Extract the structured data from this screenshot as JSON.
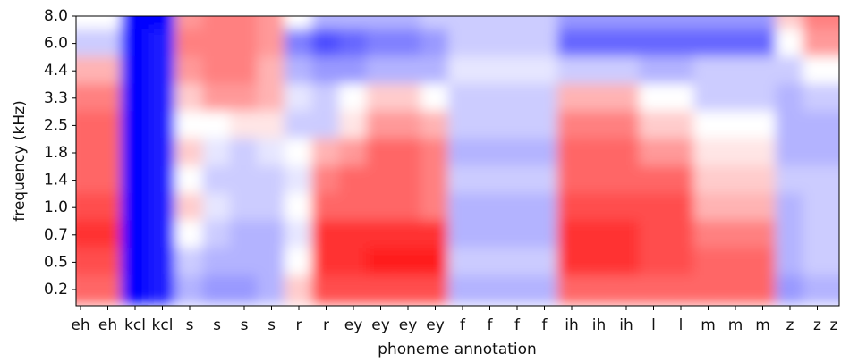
{
  "chart_data": {
    "type": "heatmap",
    "x_label": "phoneme annotation",
    "y_label": "frequency (kHz)",
    "categories": [
      "eh",
      "eh",
      "kcl",
      "kcl",
      "s",
      "s",
      "s",
      "s",
      "r",
      "r",
      "ey",
      "ey",
      "ey",
      "ey",
      "f",
      "f",
      "f",
      "f",
      "ih",
      "ih",
      "ih",
      "l",
      "l",
      "m",
      "m",
      "m",
      "z",
      "z",
      "z"
    ],
    "y_categories": [
      "8.0",
      "6.0",
      "4.4",
      "3.3",
      "2.5",
      "1.8",
      "1.4",
      "1.0",
      "0.7",
      "0.5",
      "0.2"
    ],
    "colors": [
      "#0000ff",
      "#ffffff",
      "#ff0000"
    ],
    "zlim": [
      -1,
      1
    ],
    "values": [
      [
        0,
        0,
        -1,
        -1,
        0.4,
        0.5,
        0.5,
        0.4,
        0,
        -0.3,
        -0.3,
        -0.3,
        -0.3,
        -0.2,
        -0.2,
        -0.2,
        -0.2,
        -0.2,
        -0.4,
        -0.4,
        -0.4,
        -0.4,
        -0.4,
        -0.4,
        -0.4,
        -0.4,
        0.2,
        0.5,
        0.5
      ],
      [
        -0.2,
        -0.2,
        -1,
        -0.9,
        0.5,
        0.5,
        0.5,
        0.4,
        -0.5,
        -0.7,
        -0.6,
        -0.5,
        -0.5,
        -0.4,
        -0.2,
        -0.2,
        -0.2,
        -0.2,
        -0.6,
        -0.6,
        -0.6,
        -0.6,
        -0.6,
        -0.6,
        -0.6,
        -0.6,
        0,
        0.4,
        0.4
      ],
      [
        0.3,
        0.3,
        -1,
        -0.9,
        0.4,
        0.5,
        0.5,
        0.3,
        -0.3,
        -0.4,
        -0.4,
        -0.3,
        -0.3,
        -0.3,
        -0.1,
        -0.1,
        -0.1,
        -0.1,
        -0.2,
        -0.2,
        -0.2,
        -0.3,
        -0.3,
        -0.2,
        -0.2,
        -0.2,
        -0.2,
        0,
        0
      ],
      [
        0.5,
        0.5,
        -1,
        -0.9,
        0.2,
        0.4,
        0.4,
        0.3,
        -0.1,
        -0.2,
        0,
        0.2,
        0.2,
        0,
        -0.2,
        -0.2,
        -0.2,
        -0.2,
        0.3,
        0.3,
        0.3,
        0,
        0,
        -0.2,
        -0.2,
        -0.2,
        -0.3,
        -0.2,
        -0.2
      ],
      [
        0.6,
        0.6,
        -1,
        -0.9,
        0,
        0,
        0.1,
        0.1,
        -0.2,
        -0.2,
        0.1,
        0.4,
        0.4,
        0.3,
        -0.2,
        -0.2,
        -0.2,
        -0.2,
        0.5,
        0.5,
        0.5,
        0.2,
        0.2,
        0,
        0,
        0,
        -0.3,
        -0.3,
        -0.3
      ],
      [
        0.6,
        0.6,
        -1,
        -0.9,
        0.2,
        -0.1,
        -0.2,
        -0.1,
        0,
        0.3,
        0.4,
        0.6,
        0.6,
        0.5,
        -0.3,
        -0.3,
        -0.3,
        -0.3,
        0.6,
        0.6,
        0.6,
        0.4,
        0.4,
        0.1,
        0.1,
        0.1,
        -0.3,
        -0.3,
        -0.3
      ],
      [
        0.6,
        0.6,
        -1,
        -0.9,
        0,
        -0.2,
        -0.2,
        -0.2,
        -0.1,
        0.5,
        0.6,
        0.6,
        0.6,
        0.5,
        -0.2,
        -0.2,
        -0.2,
        -0.2,
        0.6,
        0.6,
        0.6,
        0.6,
        0.6,
        0.2,
        0.2,
        0.2,
        -0.2,
        -0.2,
        -0.2
      ],
      [
        0.7,
        0.7,
        -1,
        -0.9,
        0.2,
        -0.1,
        -0.2,
        -0.2,
        0,
        0.6,
        0.6,
        0.6,
        0.6,
        0.5,
        -0.3,
        -0.3,
        -0.3,
        -0.3,
        0.7,
        0.7,
        0.7,
        0.7,
        0.7,
        0.3,
        0.3,
        0.3,
        -0.3,
        -0.2,
        -0.2
      ],
      [
        0.8,
        0.8,
        -1,
        -0.9,
        0,
        -0.2,
        -0.3,
        -0.3,
        -0.1,
        0.8,
        0.8,
        0.8,
        0.8,
        0.8,
        -0.3,
        -0.3,
        -0.3,
        -0.3,
        0.8,
        0.8,
        0.8,
        0.7,
        0.7,
        0.5,
        0.5,
        0.5,
        -0.3,
        -0.2,
        -0.2
      ],
      [
        0.7,
        0.7,
        -1,
        -0.9,
        -0.2,
        -0.3,
        -0.3,
        -0.3,
        0,
        0.8,
        0.8,
        0.9,
        0.9,
        0.9,
        -0.2,
        -0.2,
        -0.2,
        -0.2,
        0.8,
        0.8,
        0.8,
        0.7,
        0.7,
        0.6,
        0.6,
        0.6,
        -0.3,
        -0.2,
        -0.2
      ],
      [
        0.6,
        0.6,
        -1,
        -0.9,
        -0.3,
        -0.4,
        -0.4,
        -0.3,
        0.2,
        0.7,
        0.7,
        0.7,
        0.7,
        0.7,
        -0.3,
        -0.3,
        -0.3,
        -0.3,
        0.6,
        0.6,
        0.6,
        0.6,
        0.6,
        0.6,
        0.6,
        0.6,
        -0.4,
        -0.3,
        -0.3
      ]
    ]
  }
}
